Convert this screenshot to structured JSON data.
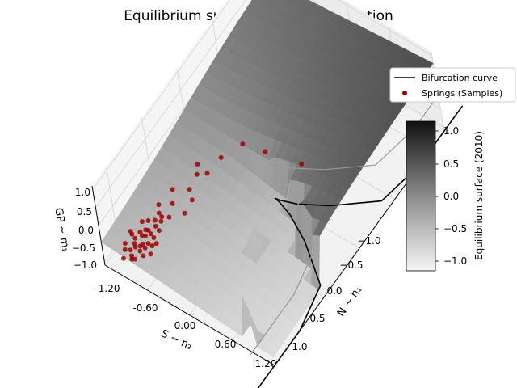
{
  "chart_data": {
    "type": "surface3d",
    "title": "Equilibrium surface with fold projection",
    "axes": {
      "x": {
        "label": "N ~ n₁",
        "range": [
          -1.2,
          1.2
        ],
        "ticks": [
          "−1.0",
          "−0.5",
          "0.0",
          "0.5",
          "1.0"
        ]
      },
      "y": {
        "label": "S ~ n₂",
        "range": [
          -1.2,
          1.2
        ],
        "ticks": [
          "-1.20",
          "-0.60",
          "0.00",
          "0.60",
          "1.20"
        ]
      },
      "z": {
        "label": "GP ~ m₁",
        "range": [
          -1.1,
          1.1
        ],
        "ticks": [
          "1.0",
          "0.5",
          "0.0",
          "−0.5",
          "−1.0"
        ]
      }
    },
    "grid": true,
    "legend": {
      "placement": "top-right",
      "entries": [
        {
          "label": "Bifurcation curve",
          "type": "line",
          "color": "#000000"
        },
        {
          "label": "Springs (Samples)",
          "type": "marker",
          "color": "#a00000"
        }
      ]
    },
    "colorbar": {
      "label": "Equilibrium surface (2010)",
      "range": [
        -1.15,
        1.15
      ],
      "ticks": [
        "1.0",
        "0.5",
        "0.0",
        "−0.5",
        "−1.0"
      ],
      "colormap": "greys"
    },
    "bifurcation_curve": {
      "t": [
        -0.9,
        -0.75,
        -0.6,
        -0.45,
        -0.3,
        -0.15,
        0.0,
        0.15,
        0.3,
        0.45,
        0.6,
        0.75,
        0.9
      ]
    },
    "samples": {
      "name": "Springs (Samples)",
      "points": [
        [
          -1.05,
          -1.05,
          -0.9
        ],
        [
          -1.0,
          -0.95,
          -0.85
        ],
        [
          -0.95,
          -1.0,
          -0.8
        ],
        [
          -0.9,
          -0.9,
          -0.75
        ],
        [
          -1.1,
          -0.85,
          -0.8
        ],
        [
          -1.0,
          -0.8,
          -0.7
        ],
        [
          -0.85,
          -0.95,
          -0.78
        ],
        [
          -0.92,
          -1.08,
          -0.86
        ],
        [
          -1.08,
          -0.92,
          -0.84
        ],
        [
          -0.8,
          -0.85,
          -0.7
        ],
        [
          -0.95,
          -0.75,
          -0.72
        ],
        [
          -0.88,
          -0.8,
          -0.74
        ],
        [
          -1.02,
          -0.7,
          -0.7
        ],
        [
          -0.78,
          -0.98,
          -0.75
        ],
        [
          -0.96,
          -0.88,
          -0.8
        ],
        [
          -0.9,
          -1.12,
          -0.88
        ],
        [
          -1.12,
          -1.0,
          -0.9
        ],
        [
          -0.82,
          -0.78,
          -0.68
        ],
        [
          -0.7,
          -0.9,
          -0.66
        ],
        [
          -0.98,
          -0.98,
          -0.84
        ],
        [
          -1.05,
          -0.78,
          -0.76
        ],
        [
          -0.86,
          -0.86,
          -0.76
        ],
        [
          -0.75,
          -0.82,
          -0.66
        ],
        [
          -0.92,
          -0.72,
          -0.7
        ],
        [
          -0.8,
          -1.05,
          -0.8
        ],
        [
          -1.0,
          -1.1,
          -0.92
        ],
        [
          -0.65,
          -0.95,
          -0.62
        ],
        [
          -0.9,
          -0.95,
          -0.8
        ],
        [
          -1.1,
          -0.9,
          -0.86
        ],
        [
          -0.7,
          -0.75,
          -0.6
        ],
        [
          -0.84,
          -0.92,
          -0.78
        ],
        [
          -0.94,
          -0.82,
          -0.76
        ],
        [
          -1.04,
          -0.98,
          -0.86
        ],
        [
          -0.76,
          -0.9,
          -0.7
        ],
        [
          -0.98,
          -0.9,
          -0.82
        ],
        [
          -0.88,
          -1.0,
          -0.82
        ],
        [
          -1.02,
          -0.86,
          -0.8
        ],
        [
          -0.72,
          -0.84,
          -0.64
        ],
        [
          -0.6,
          -0.8,
          -0.55
        ],
        [
          -0.5,
          -0.9,
          -0.55
        ],
        [
          -0.45,
          -0.7,
          -0.45
        ],
        [
          -0.3,
          -0.75,
          -0.5
        ],
        [
          -0.2,
          -0.85,
          -0.6
        ],
        [
          -0.1,
          -0.6,
          -0.4
        ],
        [
          -0.55,
          -0.55,
          -0.3
        ],
        [
          -0.4,
          -0.45,
          0.15
        ],
        [
          -0.7,
          -0.5,
          -0.2
        ],
        [
          0.1,
          -0.5,
          -0.45
        ],
        [
          0.2,
          -0.3,
          -0.7
        ],
        [
          0.3,
          0.1,
          -0.85
        ]
      ]
    }
  }
}
